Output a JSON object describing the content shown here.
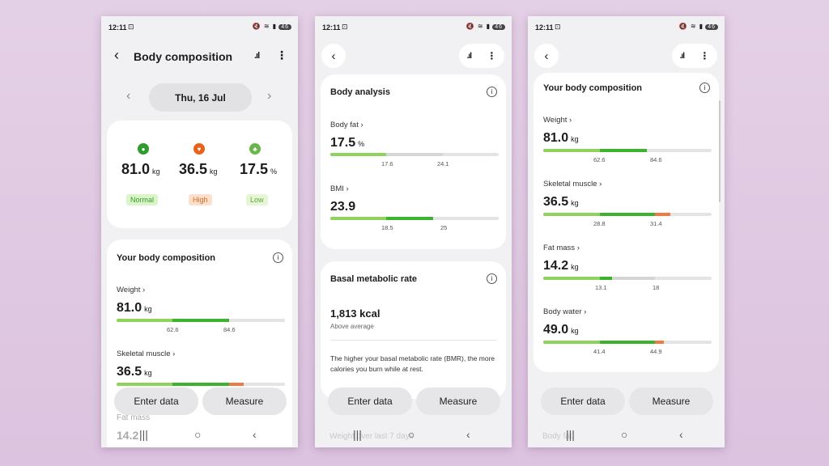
{
  "status": {
    "time": "12:11",
    "battery": "46"
  },
  "screen1": {
    "title": "Body composition",
    "date": "Thu, 16 Jul",
    "summary": [
      {
        "value": "81.0",
        "unit": "kg",
        "tag": "Normal",
        "tag_bg": "#d9f5c9",
        "tag_color": "#3a9a28",
        "icon_color": "#2e9b2e"
      },
      {
        "value": "36.5",
        "unit": "kg",
        "tag": "High",
        "tag_bg": "#fde0cc",
        "tag_color": "#d26a25",
        "icon_color": "#e8621a"
      },
      {
        "value": "17.5",
        "unit": "%",
        "tag": "Low",
        "tag_bg": "#e6f6d5",
        "tag_color": "#5aa83a",
        "icon_color": "#6ab64c"
      }
    ],
    "section_title": "Your body composition",
    "weight": {
      "label": "Weight",
      "value": "81.0",
      "unit": "kg",
      "t1": "62.6",
      "t2": "84.6"
    },
    "skeletal": {
      "label": "Skeletal muscle",
      "value": "36.5",
      "unit": "kg"
    },
    "fat_peek": "Fat mass",
    "fat_value_peek": "14.2",
    "enter": "Enter data",
    "measure": "Measure"
  },
  "screen2": {
    "section_title": "Body analysis",
    "bodyfat": {
      "label": "Body fat",
      "value": "17.5",
      "unit": "%",
      "t1": "17.6",
      "t2": "24.1"
    },
    "bmi": {
      "label": "BMI",
      "value": "23.9",
      "t1": "18.5",
      "t2": "25"
    },
    "bmr_title": "Basal metabolic rate",
    "bmr_value": "1,813 kcal",
    "bmr_sub": "Above average",
    "bmr_desc": "The higher your basal metabolic rate (BMR), the more calories you burn while at rest.",
    "peek": "Weight over last 7 days",
    "enter": "Enter data",
    "measure": "Measure"
  },
  "screen3": {
    "section_title": "Your body composition",
    "weight": {
      "label": "Weight",
      "value": "81.0",
      "unit": "kg",
      "t1": "62.6",
      "t2": "84.6"
    },
    "skeletal": {
      "label": "Skeletal muscle",
      "value": "36.5",
      "unit": "kg",
      "t1": "28.8",
      "t2": "31.4"
    },
    "fat": {
      "label": "Fat mass",
      "value": "14.2",
      "unit": "kg",
      "t1": "13.1",
      "t2": "18"
    },
    "water": {
      "label": "Body water",
      "value": "49.0",
      "unit": "kg",
      "t1": "41.4",
      "t2": "44.9"
    },
    "peek": "Body fat",
    "enter": "Enter data",
    "measure": "Measure"
  },
  "colors": {
    "light_green": "#8fd35c",
    "green": "#3cb32e",
    "orange": "#f07a45",
    "track": "#e4e4e4"
  }
}
